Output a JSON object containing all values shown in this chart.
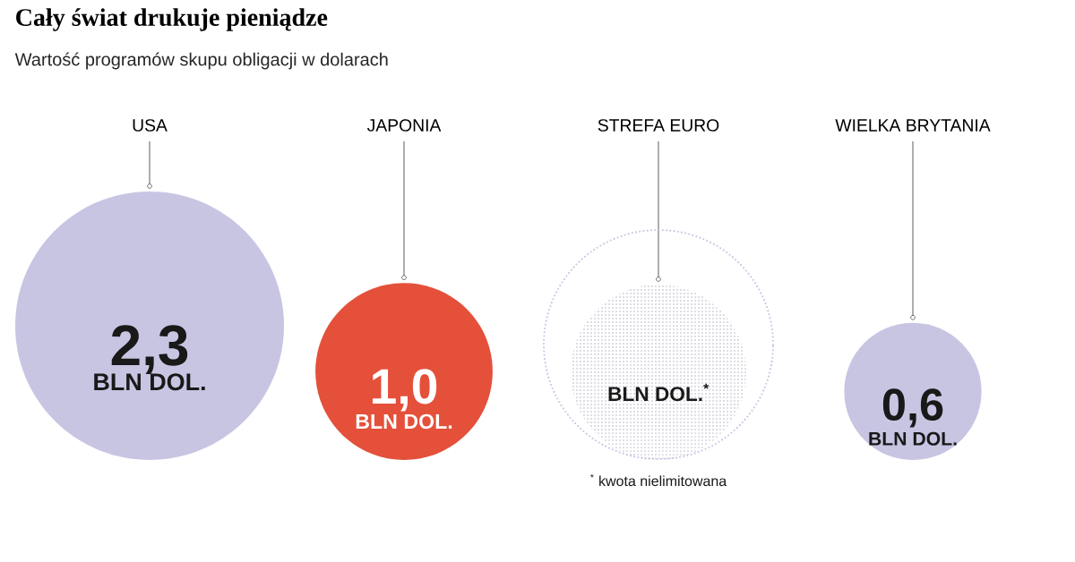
{
  "chart_data": {
    "type": "other",
    "title": "Cały świat drukuje pieniądze",
    "subtitle": "Wartość programów skupu obligacji w dolarach",
    "categories": [
      "USA",
      "JAPONIA",
      "STREFA EURO",
      "WIELKA BRYTANIA"
    ],
    "values": [
      2.3,
      1.0,
      null,
      0.6
    ],
    "value_labels": [
      "2,3",
      "1,0",
      null,
      "0,6"
    ],
    "colors": [
      "#c8c5e3",
      "#e4503a",
      "#c8c5e3",
      "#c8c5e3"
    ],
    "annotations": [
      "BLN DOL.",
      "BLN DOL.",
      "BLN DOL.$^{*}$",
      "BLN DOL.",
      "$^{*}$ kwota nielimitowana"
    ]
  }
}
